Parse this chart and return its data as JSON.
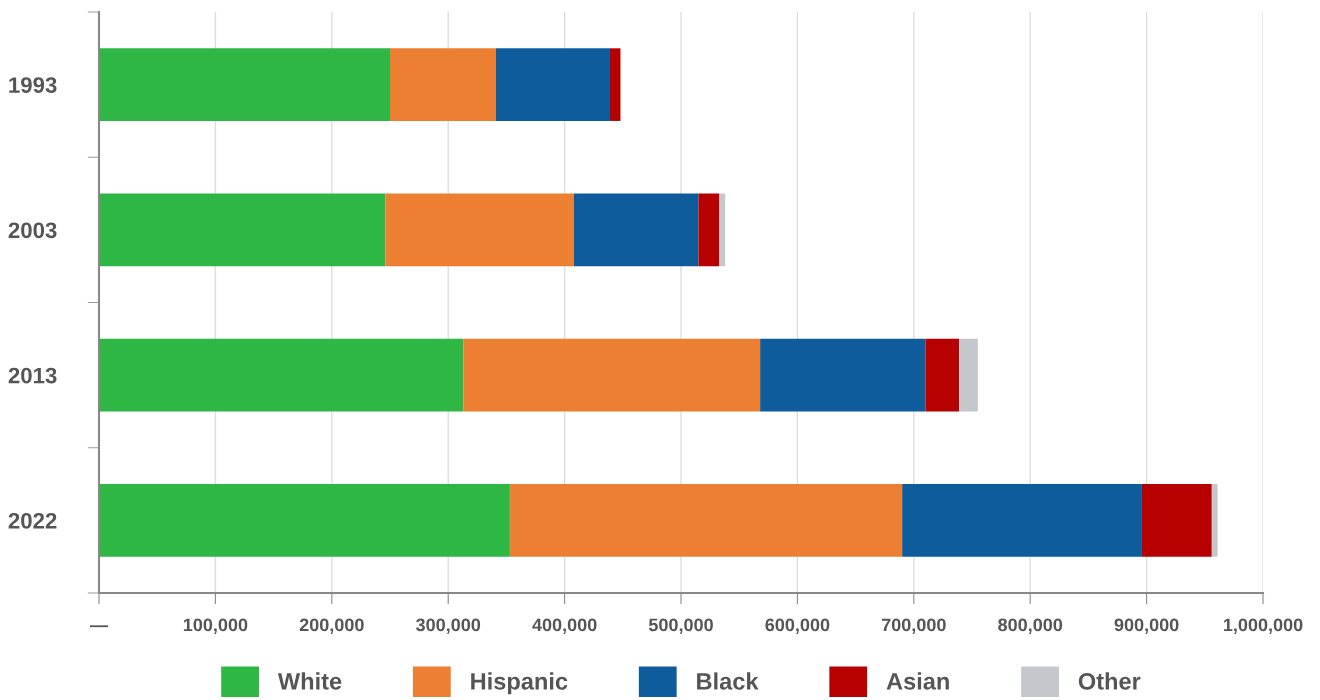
{
  "chart_data": {
    "type": "bar",
    "orientation": "horizontal",
    "stacked": true,
    "categories": [
      "1993",
      "2003",
      "2013",
      "2022"
    ],
    "series": [
      {
        "name": "White",
        "color": "#2eb744",
        "values": [
          250000,
          246000,
          313000,
          353000
        ]
      },
      {
        "name": "Hispanic",
        "color": "#ed7f33",
        "values": [
          91000,
          162000,
          255000,
          337000
        ]
      },
      {
        "name": "Black",
        "color": "#0e5c9c",
        "values": [
          98000,
          107000,
          142000,
          206000
        ]
      },
      {
        "name": "Asian",
        "color": "#b70000",
        "values": [
          9000,
          18000,
          29000,
          60000
        ]
      },
      {
        "name": "Other",
        "color": "#c4c8cc",
        "values": [
          0,
          5000,
          16000,
          5000
        ]
      }
    ],
    "xlim": [
      0,
      1000000
    ],
    "xticks": [
      {
        "value": 0,
        "label": "—"
      },
      {
        "value": 100000,
        "label": "100,000"
      },
      {
        "value": 200000,
        "label": "200,000"
      },
      {
        "value": 300000,
        "label": "300,000"
      },
      {
        "value": 400000,
        "label": "400,000"
      },
      {
        "value": 500000,
        "label": "500,000"
      },
      {
        "value": 600000,
        "label": "600,000"
      },
      {
        "value": 700000,
        "label": "700,000"
      },
      {
        "value": 800000,
        "label": "800,000"
      },
      {
        "value": 900000,
        "label": "900,000"
      },
      {
        "value": 1000000,
        "label": "1,000,000"
      }
    ],
    "grid": "x",
    "legend": "bottom"
  }
}
